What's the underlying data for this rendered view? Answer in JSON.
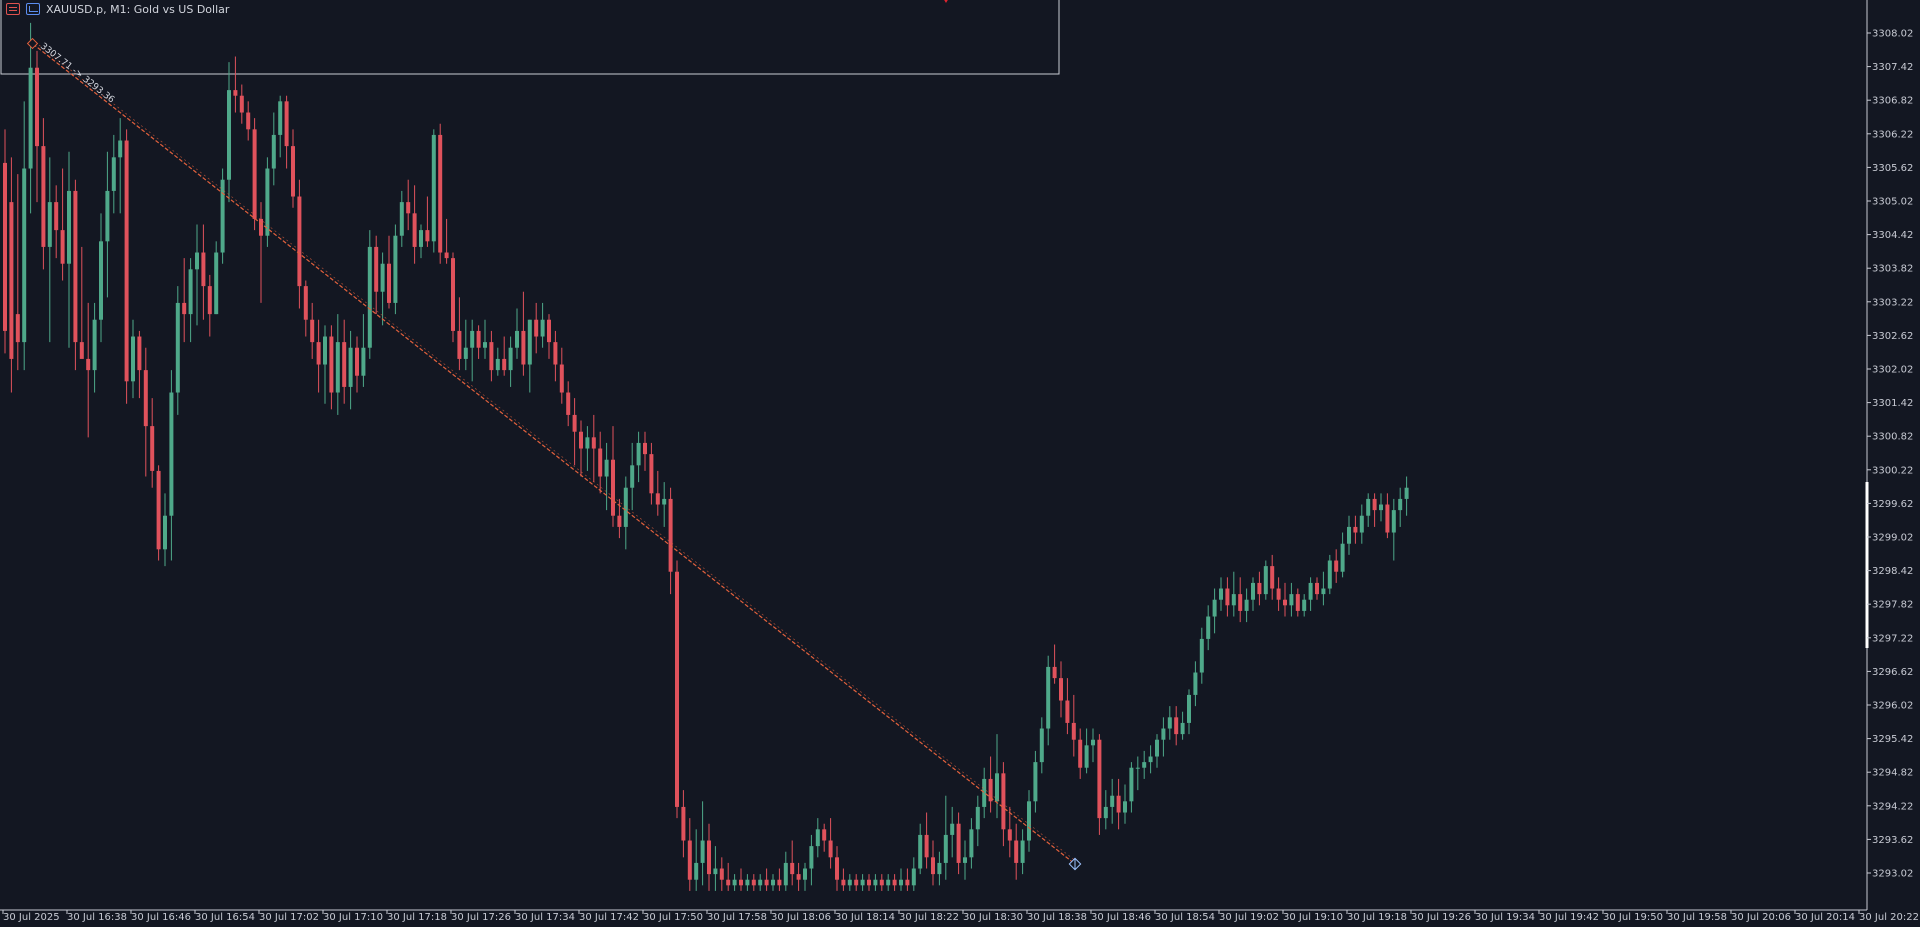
{
  "window": {
    "symbol_title": "XAUUSD.p, M1:  Gold vs US Dollar"
  },
  "icons": {
    "menu": "menu-icon",
    "chart": "chart-icon"
  },
  "colors": {
    "background": "#131722",
    "bull": "#4fa98a",
    "bear": "#e0525c",
    "trendline": "#e2613d",
    "axis_text": "#c7cad3"
  },
  "trendline_label": "3307.71 -> 3293.36",
  "chart_data": {
    "type": "candlestick",
    "title": "XAUUSD.p, M1:  Gold vs US Dollar",
    "price_axis_labels": [
      "3308.02",
      "3307.42",
      "3306.82",
      "3306.22",
      "3305.62",
      "3305.02",
      "3304.42",
      "3303.82",
      "3303.22",
      "3302.62",
      "3302.02",
      "3301.42",
      "3300.82",
      "3300.22",
      "3299.62",
      "3299.02",
      "3298.42",
      "3297.82",
      "3297.22",
      "3296.62",
      "3296.02",
      "3295.42",
      "3294.82",
      "3294.22",
      "3293.62",
      "3293.02"
    ],
    "time_axis_labels": [
      "30 Jul 2025",
      "30 Jul 16:38",
      "30 Jul 16:46",
      "30 Jul 16:54",
      "30 Jul 17:02",
      "30 Jul 17:10",
      "30 Jul 17:18",
      "30 Jul 17:26",
      "30 Jul 17:34",
      "30 Jul 17:42",
      "30 Jul 17:50",
      "30 Jul 17:58",
      "30 Jul 18:06",
      "30 Jul 18:14",
      "30 Jul 18:22",
      "30 Jul 18:30",
      "30 Jul 18:38",
      "30 Jul 18:46",
      "30 Jul 18:54",
      "30 Jul 19:02",
      "30 Jul 19:10",
      "30 Jul 19:18",
      "30 Jul 19:26",
      "30 Jul 19:34",
      "30 Jul 19:42",
      "30 Jul 19:50",
      "30 Jul 19:58",
      "30 Jul 20:06",
      "30 Jul 20:14",
      "30 Jul 20:22"
    ],
    "ylim": [
      3292.66,
      3308.62
    ],
    "grid": false,
    "trendline": {
      "start_price": 3307.71,
      "end_price": 3293.36
    },
    "ohlc": [
      [
        3305.7,
        3306.3,
        3302.3,
        3302.7
      ],
      [
        3305.0,
        3305.8,
        3301.6,
        3302.2
      ],
      [
        3303.0,
        3305.5,
        3302.0,
        3302.5
      ],
      [
        3302.5,
        3306.8,
        3302.0,
        3305.6
      ],
      [
        3305.6,
        3308.2,
        3304.8,
        3307.4
      ],
      [
        3307.4,
        3307.7,
        3305.0,
        3306.0
      ],
      [
        3306.0,
        3306.5,
        3303.8,
        3304.2
      ],
      [
        3304.2,
        3305.8,
        3302.5,
        3305.0
      ],
      [
        3305.0,
        3305.3,
        3304.0,
        3304.5
      ],
      [
        3304.5,
        3305.6,
        3303.6,
        3303.9
      ],
      [
        3303.9,
        3305.9,
        3302.4,
        3305.2
      ],
      [
        3305.2,
        3305.4,
        3302.0,
        3302.5
      ],
      [
        3302.5,
        3304.2,
        3302.3,
        3302.2
      ],
      [
        3302.2,
        3303.2,
        3300.8,
        3302.0
      ],
      [
        3302.0,
        3303.2,
        3301.6,
        3302.9
      ],
      [
        3302.9,
        3304.8,
        3302.5,
        3304.3
      ],
      [
        3304.3,
        3305.9,
        3303.3,
        3305.2
      ],
      [
        3305.2,
        3306.2,
        3304.8,
        3305.8
      ],
      [
        3305.8,
        3306.5,
        3304.8,
        3306.1
      ],
      [
        3306.1,
        3306.3,
        3301.4,
        3301.8
      ],
      [
        3301.8,
        3302.9,
        3301.5,
        3302.6
      ],
      [
        3302.6,
        3302.7,
        3301.5,
        3302.0
      ],
      [
        3302.0,
        3302.4,
        3300.1,
        3301.0
      ],
      [
        3301.0,
        3301.5,
        3299.9,
        3300.2
      ],
      [
        3300.2,
        3300.3,
        3298.6,
        3298.8
      ],
      [
        3298.8,
        3299.8,
        3298.5,
        3299.4
      ],
      [
        3299.4,
        3302.0,
        3298.6,
        3301.6
      ],
      [
        3301.6,
        3303.5,
        3301.2,
        3303.2
      ],
      [
        3303.2,
        3304.0,
        3302.5,
        3303.0
      ],
      [
        3303.0,
        3304.0,
        3302.5,
        3303.8
      ],
      [
        3303.8,
        3304.6,
        3302.8,
        3304.1
      ],
      [
        3304.1,
        3304.6,
        3302.9,
        3303.5
      ],
      [
        3303.5,
        3303.7,
        3302.6,
        3303.0
      ],
      [
        3303.0,
        3304.3,
        3303.0,
        3304.1
      ],
      [
        3304.1,
        3305.6,
        3303.9,
        3305.4
      ],
      [
        3305.4,
        3307.5,
        3305.0,
        3307.0
      ],
      [
        3307.0,
        3307.6,
        3306.6,
        3306.9
      ],
      [
        3306.9,
        3307.1,
        3306.4,
        3306.6
      ],
      [
        3306.6,
        3306.8,
        3306.1,
        3306.3
      ],
      [
        3306.3,
        3306.5,
        3304.5,
        3304.7
      ],
      [
        3304.7,
        3305.0,
        3303.2,
        3304.4
      ],
      [
        3304.4,
        3305.8,
        3304.2,
        3305.6
      ],
      [
        3305.6,
        3306.6,
        3305.3,
        3306.2
      ],
      [
        3306.2,
        3306.9,
        3305.8,
        3306.8
      ],
      [
        3306.8,
        3306.9,
        3305.6,
        3306.0
      ],
      [
        3306.0,
        3306.3,
        3304.9,
        3305.1
      ],
      [
        3305.1,
        3305.4,
        3303.1,
        3303.5
      ],
      [
        3303.5,
        3303.6,
        3302.6,
        3302.9
      ],
      [
        3302.9,
        3303.2,
        3302.2,
        3302.5
      ],
      [
        3302.5,
        3302.9,
        3301.6,
        3302.1
      ],
      [
        3302.1,
        3302.8,
        3301.4,
        3302.6
      ],
      [
        3302.6,
        3302.8,
        3301.3,
        3301.6
      ],
      [
        3301.6,
        3303.0,
        3301.2,
        3302.5
      ],
      [
        3302.5,
        3302.9,
        3301.4,
        3301.7
      ],
      [
        3301.7,
        3302.7,
        3301.3,
        3302.4
      ],
      [
        3302.4,
        3302.6,
        3301.6,
        3301.9
      ],
      [
        3301.9,
        3303.0,
        3301.7,
        3302.4
      ],
      [
        3302.4,
        3304.5,
        3302.2,
        3304.2
      ],
      [
        3304.2,
        3304.4,
        3303.0,
        3303.4
      ],
      [
        3303.4,
        3304.1,
        3302.8,
        3303.9
      ],
      [
        3303.9,
        3304.4,
        3303.1,
        3303.2
      ],
      [
        3303.2,
        3304.6,
        3303.0,
        3304.4
      ],
      [
        3304.4,
        3305.2,
        3304.2,
        3305.0
      ],
      [
        3305.0,
        3305.4,
        3304.5,
        3304.8
      ],
      [
        3304.8,
        3305.3,
        3303.9,
        3304.2
      ],
      [
        3304.2,
        3304.6,
        3304.0,
        3304.5
      ],
      [
        3304.5,
        3305.1,
        3304.2,
        3304.3
      ],
      [
        3304.3,
        3306.3,
        3304.1,
        3306.2
      ],
      [
        3306.2,
        3306.4,
        3303.9,
        3304.1
      ],
      [
        3304.1,
        3304.7,
        3303.9,
        3304.0
      ],
      [
        3304.0,
        3304.1,
        3302.5,
        3302.7
      ],
      [
        3302.7,
        3303.3,
        3302.0,
        3302.2
      ],
      [
        3302.2,
        3302.9,
        3302.0,
        3302.4
      ],
      [
        3302.4,
        3302.9,
        3301.8,
        3302.7
      ],
      [
        3302.7,
        3302.8,
        3302.2,
        3302.4
      ],
      [
        3302.4,
        3302.9,
        3302.2,
        3302.5
      ],
      [
        3302.5,
        3302.7,
        3301.8,
        3302.0
      ],
      [
        3302.0,
        3302.4,
        3301.9,
        3302.2
      ],
      [
        3302.2,
        3302.6,
        3301.9,
        3302.0
      ],
      [
        3302.0,
        3302.6,
        3301.7,
        3302.4
      ],
      [
        3302.4,
        3303.1,
        3302.2,
        3302.7
      ],
      [
        3302.7,
        3303.4,
        3301.9,
        3302.1
      ],
      [
        3302.1,
        3302.9,
        3301.6,
        3302.9
      ],
      [
        3302.9,
        3303.2,
        3302.3,
        3302.6
      ],
      [
        3302.6,
        3303.2,
        3302.4,
        3302.9
      ],
      [
        3302.9,
        3303.0,
        3302.2,
        3302.5
      ],
      [
        3302.5,
        3302.7,
        3301.8,
        3302.1
      ],
      [
        3302.1,
        3302.4,
        3301.4,
        3301.6
      ],
      [
        3301.6,
        3301.8,
        3301.0,
        3301.2
      ],
      [
        3301.2,
        3301.5,
        3300.3,
        3300.9
      ],
      [
        3300.9,
        3301.1,
        3300.1,
        3300.6
      ],
      [
        3300.6,
        3301.0,
        3300.2,
        3300.8
      ],
      [
        3300.8,
        3301.2,
        3300.0,
        3300.6
      ],
      [
        3300.6,
        3300.9,
        3299.8,
        3300.1
      ],
      [
        3300.1,
        3300.7,
        3299.5,
        3300.4
      ],
      [
        3300.4,
        3301.0,
        3299.2,
        3299.4
      ],
      [
        3299.4,
        3299.7,
        3299.0,
        3299.2
      ],
      [
        3299.2,
        3300.1,
        3298.8,
        3299.9
      ],
      [
        3299.9,
        3300.7,
        3299.5,
        3300.3
      ],
      [
        3300.3,
        3300.9,
        3300.0,
        3300.7
      ],
      [
        3300.7,
        3300.9,
        3300.2,
        3300.5
      ],
      [
        3300.5,
        3300.7,
        3299.6,
        3299.8
      ],
      [
        3299.8,
        3300.2,
        3299.4,
        3299.6
      ],
      [
        3299.6,
        3300.0,
        3299.2,
        3299.7
      ],
      [
        3299.7,
        3299.9,
        3298.0,
        3298.4
      ],
      [
        3298.4,
        3298.6,
        3294.0,
        3294.2
      ],
      [
        3294.2,
        3294.5,
        3293.3,
        3293.6
      ],
      [
        3293.6,
        3294.0,
        3292.7,
        3292.9
      ],
      [
        3292.9,
        3293.8,
        3292.7,
        3293.2
      ],
      [
        3293.2,
        3294.3,
        3292.8,
        3293.6
      ],
      [
        3293.6,
        3293.9,
        3292.7,
        3293.0
      ],
      [
        3293.0,
        3293.5,
        3292.7,
        3293.1
      ],
      [
        3293.1,
        3293.3,
        3292.7,
        3292.9
      ],
      [
        3292.9,
        3293.2,
        3292.7,
        3292.8
      ],
      [
        3292.8,
        3293.0,
        3292.7,
        3292.9
      ],
      [
        3292.9,
        3293.1,
        3292.7,
        3292.8
      ],
      [
        3292.8,
        3293.0,
        3292.7,
        3292.9
      ],
      [
        3292.9,
        3293.0,
        3292.7,
        3292.8
      ],
      [
        3292.8,
        3293.0,
        3292.7,
        3292.9
      ],
      [
        3292.9,
        3293.1,
        3292.7,
        3292.8
      ],
      [
        3292.8,
        3293.0,
        3292.7,
        3292.9
      ],
      [
        3292.9,
        3293.1,
        3292.7,
        3292.8
      ],
      [
        3292.8,
        3293.4,
        3292.7,
        3293.2
      ],
      [
        3293.2,
        3293.6,
        3292.8,
        3293.0
      ],
      [
        3293.0,
        3293.2,
        3292.7,
        3292.9
      ],
      [
        3292.9,
        3293.2,
        3292.7,
        3293.1
      ],
      [
        3293.1,
        3293.7,
        3292.8,
        3293.5
      ],
      [
        3293.5,
        3294.0,
        3293.3,
        3293.8
      ],
      [
        3293.8,
        3293.9,
        3293.4,
        3293.6
      ],
      [
        3293.6,
        3294.0,
        3293.1,
        3293.3
      ],
      [
        3293.3,
        3293.5,
        3292.7,
        3292.9
      ],
      [
        3292.9,
        3293.1,
        3292.7,
        3292.8
      ],
      [
        3292.8,
        3293.0,
        3292.7,
        3292.9
      ],
      [
        3292.9,
        3293.0,
        3292.7,
        3292.8
      ],
      [
        3292.8,
        3293.0,
        3292.7,
        3292.9
      ],
      [
        3292.9,
        3293.0,
        3292.7,
        3292.8
      ],
      [
        3292.8,
        3293.0,
        3292.7,
        3292.9
      ],
      [
        3292.9,
        3293.0,
        3292.7,
        3292.8
      ],
      [
        3292.8,
        3293.0,
        3292.7,
        3292.9
      ],
      [
        3292.9,
        3293.0,
        3292.7,
        3292.8
      ],
      [
        3292.8,
        3293.1,
        3292.7,
        3292.9
      ],
      [
        3292.9,
        3293.1,
        3292.7,
        3292.8
      ],
      [
        3292.8,
        3293.3,
        3292.7,
        3293.1
      ],
      [
        3293.1,
        3293.9,
        3293.0,
        3293.7
      ],
      [
        3293.7,
        3294.1,
        3293.1,
        3293.3
      ],
      [
        3293.3,
        3293.6,
        3292.8,
        3293.0
      ],
      [
        3293.0,
        3293.4,
        3292.8,
        3293.2
      ],
      [
        3293.2,
        3294.4,
        3292.9,
        3293.7
      ],
      [
        3293.7,
        3294.2,
        3293.3,
        3293.9
      ],
      [
        3293.9,
        3294.1,
        3293.0,
        3293.2
      ],
      [
        3293.2,
        3293.6,
        3292.9,
        3293.3
      ],
      [
        3293.3,
        3294.0,
        3293.1,
        3293.8
      ],
      [
        3293.8,
        3294.4,
        3293.5,
        3294.2
      ],
      [
        3294.2,
        3294.9,
        3294.0,
        3294.7
      ],
      [
        3294.7,
        3295.1,
        3294.1,
        3294.3
      ],
      [
        3294.3,
        3295.5,
        3294.0,
        3294.8
      ],
      [
        3294.8,
        3295.0,
        3293.5,
        3293.8
      ],
      [
        3293.8,
        3294.2,
        3293.3,
        3293.6
      ],
      [
        3293.6,
        3293.9,
        3292.9,
        3293.2
      ],
      [
        3293.2,
        3293.8,
        3293.0,
        3293.6
      ],
      [
        3293.6,
        3294.5,
        3293.4,
        3294.3
      ],
      [
        3294.3,
        3295.2,
        3294.1,
        3295.0
      ],
      [
        3295.0,
        3295.8,
        3294.8,
        3295.6
      ],
      [
        3295.6,
        3296.9,
        3295.3,
        3296.7
      ],
      [
        3296.7,
        3297.1,
        3296.4,
        3296.5
      ],
      [
        3296.5,
        3296.8,
        3295.8,
        3296.1
      ],
      [
        3296.1,
        3296.5,
        3295.5,
        3295.7
      ],
      [
        3295.7,
        3296.2,
        3295.1,
        3295.4
      ],
      [
        3295.4,
        3295.6,
        3294.7,
        3294.9
      ],
      [
        3294.9,
        3295.6,
        3294.8,
        3295.3
      ],
      [
        3295.3,
        3295.6,
        3295.0,
        3295.4
      ],
      [
        3295.4,
        3295.5,
        3293.7,
        3294.0
      ],
      [
        3294.0,
        3294.5,
        3293.8,
        3294.2
      ],
      [
        3294.2,
        3294.7,
        3293.9,
        3294.4
      ],
      [
        3294.4,
        3294.7,
        3293.8,
        3294.1
      ],
      [
        3294.1,
        3294.6,
        3293.9,
        3294.3
      ],
      [
        3294.3,
        3295.0,
        3294.1,
        3294.9
      ],
      [
        3294.9,
        3295.1,
        3294.5,
        3294.9
      ],
      [
        3294.9,
        3295.2,
        3294.7,
        3295.0
      ],
      [
        3295.0,
        3295.3,
        3294.8,
        3295.1
      ],
      [
        3295.1,
        3295.5,
        3294.9,
        3295.4
      ],
      [
        3295.4,
        3295.8,
        3295.1,
        3295.6
      ],
      [
        3295.6,
        3296.0,
        3295.4,
        3295.8
      ],
      [
        3295.8,
        3296.0,
        3295.3,
        3295.5
      ],
      [
        3295.5,
        3295.9,
        3295.4,
        3295.7
      ],
      [
        3295.7,
        3296.3,
        3295.5,
        3296.2
      ],
      [
        3296.2,
        3296.8,
        3296.0,
        3296.6
      ],
      [
        3296.6,
        3297.4,
        3296.4,
        3297.2
      ],
      [
        3297.2,
        3297.8,
        3297.0,
        3297.6
      ],
      [
        3297.6,
        3298.1,
        3297.3,
        3297.9
      ],
      [
        3297.9,
        3298.3,
        3297.7,
        3298.1
      ],
      [
        3298.1,
        3298.3,
        3297.6,
        3297.8
      ],
      [
        3297.8,
        3298.4,
        3297.6,
        3298.0
      ],
      [
        3298.0,
        3298.3,
        3297.5,
        3297.7
      ],
      [
        3297.7,
        3298.1,
        3297.5,
        3297.9
      ],
      [
        3297.9,
        3298.3,
        3297.7,
        3298.2
      ],
      [
        3298.2,
        3298.4,
        3297.8,
        3298.0
      ],
      [
        3298.0,
        3298.6,
        3297.9,
        3298.5
      ],
      [
        3298.5,
        3298.7,
        3297.9,
        3298.1
      ],
      [
        3298.1,
        3298.3,
        3297.7,
        3297.9
      ],
      [
        3297.9,
        3298.2,
        3297.6,
        3297.8
      ],
      [
        3297.8,
        3298.2,
        3297.6,
        3298.0
      ],
      [
        3298.0,
        3298.1,
        3297.6,
        3297.7
      ],
      [
        3297.7,
        3298.0,
        3297.6,
        3297.9
      ],
      [
        3297.9,
        3298.3,
        3297.7,
        3298.2
      ],
      [
        3298.2,
        3298.3,
        3297.9,
        3298.0
      ],
      [
        3298.0,
        3298.4,
        3297.8,
        3298.1
      ],
      [
        3298.1,
        3298.7,
        3298.0,
        3298.6
      ],
      [
        3298.6,
        3298.8,
        3298.2,
        3298.4
      ],
      [
        3298.4,
        3299.1,
        3298.3,
        3298.9
      ],
      [
        3298.9,
        3299.4,
        3298.7,
        3299.2
      ],
      [
        3299.2,
        3299.4,
        3298.9,
        3299.1
      ],
      [
        3299.1,
        3299.6,
        3298.9,
        3299.4
      ],
      [
        3299.4,
        3299.8,
        3299.2,
        3299.7
      ],
      [
        3299.7,
        3299.8,
        3299.2,
        3299.5
      ],
      [
        3299.5,
        3299.8,
        3299.3,
        3299.6
      ],
      [
        3299.6,
        3299.8,
        3299.0,
        3299.1
      ],
      [
        3299.1,
        3299.7,
        3298.6,
        3299.5
      ],
      [
        3299.5,
        3299.9,
        3299.2,
        3299.7
      ],
      [
        3299.7,
        3300.1,
        3299.4,
        3299.9
      ]
    ]
  }
}
